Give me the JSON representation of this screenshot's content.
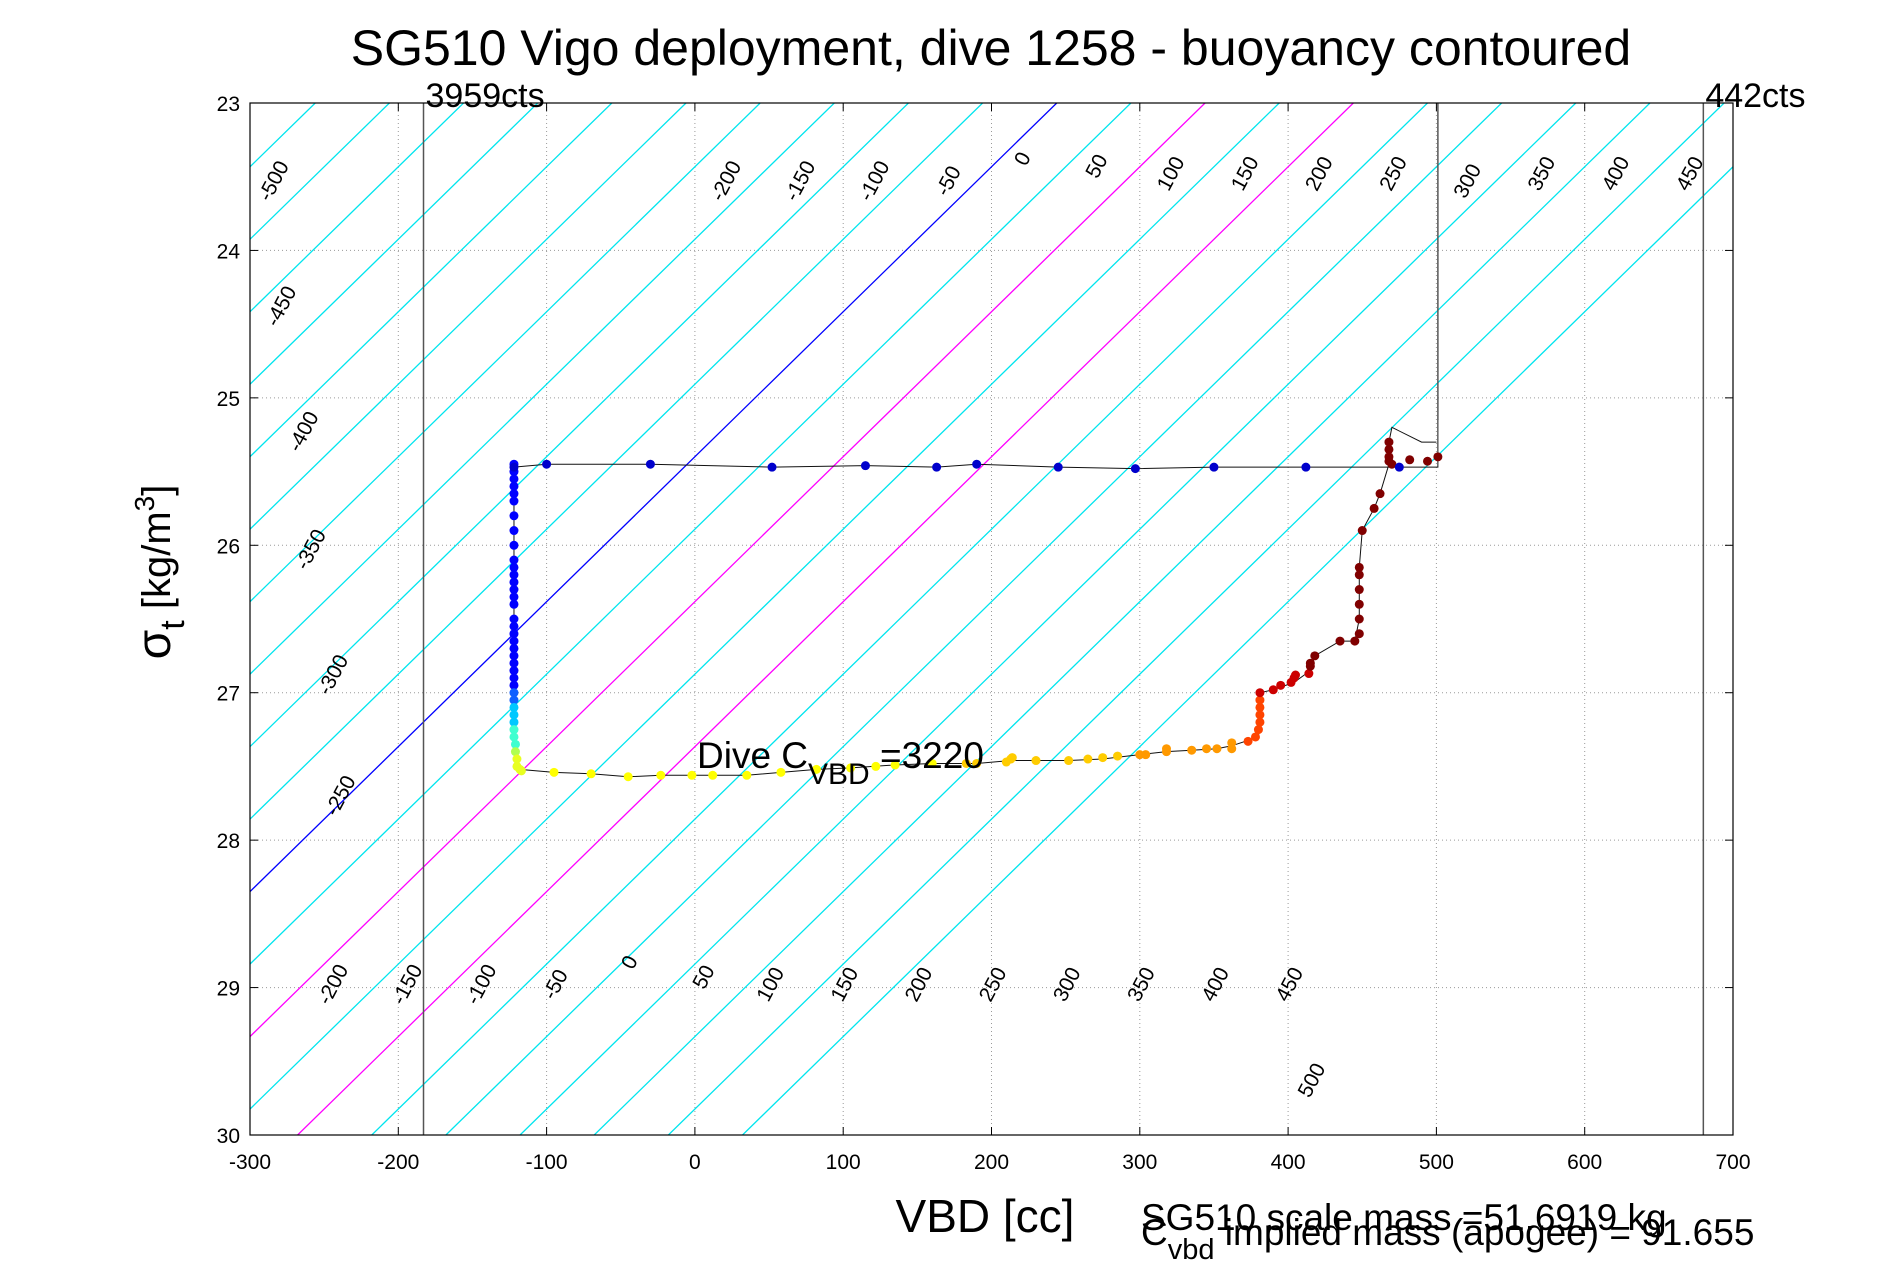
{
  "chart_data": {
    "type": "scatter",
    "title": "SG510 Vigo deployment, dive 1258 - buoyancy contoured",
    "xlabel": "VBD [cc]",
    "ylabel_main": "σ",
    "ylabel_sub": "t",
    "ylabel_units": " [kg/m",
    "ylabel_sup": "3",
    "ylabel_close": "]",
    "xlim": [
      -300,
      700
    ],
    "ylim": [
      23,
      30
    ],
    "y_reversed": true,
    "grid": true,
    "x_ticks": [
      -300,
      -200,
      -100,
      0,
      100,
      200,
      300,
      400,
      500,
      600,
      700
    ],
    "x_tick_labels": [
      "-300",
      "-200",
      "-100",
      "0",
      "100",
      "200",
      "300",
      "400",
      "500",
      "600",
      "700"
    ],
    "y_ticks": [
      23,
      24,
      25,
      26,
      27,
      28,
      29,
      30
    ],
    "y_tick_labels": [
      "23",
      "24",
      "25",
      "26",
      "27",
      "28",
      "29",
      "30"
    ],
    "vbd_limits": [
      {
        "x": -183,
        "label": "3959cts"
      },
      {
        "x": 680,
        "label": "442cts"
      }
    ],
    "apogee_line_x": 501,
    "contour_levels": [
      -500,
      -450,
      -400,
      -350,
      -300,
      -250,
      -200,
      -150,
      -100,
      -50,
      0,
      50,
      100,
      150,
      200,
      250,
      300,
      350,
      400,
      450,
      500
    ],
    "contour_slope_cc_per_sigma": 101.7,
    "contour_ref_x_at_sigma23": 244,
    "contour_colors": {
      "default": "#00e5ee",
      "zero": "#0000ff",
      "highlight": "#ff00ff"
    },
    "highlight_levels": [
      100,
      200
    ],
    "contour_labels": [
      {
        "level": -500,
        "x": -280,
        "sigma": 23.55,
        "text": "-500"
      },
      {
        "level": -450,
        "x": -275,
        "sigma": 24.4,
        "text": "-450"
      },
      {
        "level": -400,
        "x": -260,
        "sigma": 25.25,
        "text": "-400"
      },
      {
        "level": -350,
        "x": -255,
        "sigma": 26.05,
        "text": "-350"
      },
      {
        "level": -300,
        "x": -240,
        "sigma": 26.9,
        "text": "-300"
      },
      {
        "level": -250,
        "x": -235,
        "sigma": 27.72,
        "text": "-250"
      },
      {
        "level": -200,
        "x": -240,
        "sigma": 29.0,
        "text": "-200"
      },
      {
        "level": -150,
        "x": -190,
        "sigma": 29.0,
        "text": "-150"
      },
      {
        "level": -100,
        "x": -140,
        "sigma": 29.0,
        "text": "-100"
      },
      {
        "level": -50,
        "x": -90,
        "sigma": 29.0,
        "text": "-50"
      },
      {
        "level": 0,
        "x": -40,
        "sigma": 28.85,
        "text": "0"
      },
      {
        "level": 50,
        "x": 10,
        "sigma": 28.95,
        "text": "50"
      },
      {
        "level": 100,
        "x": 55,
        "sigma": 29.0,
        "text": "100"
      },
      {
        "level": 150,
        "x": 105,
        "sigma": 29.0,
        "text": "150"
      },
      {
        "level": 200,
        "x": 155,
        "sigma": 29.0,
        "text": "200"
      },
      {
        "level": 250,
        "x": 205,
        "sigma": 29.0,
        "text": "250"
      },
      {
        "level": 300,
        "x": 255,
        "sigma": 29.0,
        "text": "300"
      },
      {
        "level": 350,
        "x": 305,
        "sigma": 29.0,
        "text": "350"
      },
      {
        "level": 400,
        "x": 355,
        "sigma": 29.0,
        "text": "400"
      },
      {
        "level": 450,
        "x": 405,
        "sigma": 29.0,
        "text": "450"
      },
      {
        "level": 500,
        "x": 420,
        "sigma": 29.65,
        "text": "500"
      },
      {
        "level": -200,
        "x": 25,
        "sigma": 23.55,
        "text": "-200"
      },
      {
        "level": -150,
        "x": 75,
        "sigma": 23.55,
        "text": "-150"
      },
      {
        "level": -100,
        "x": 125,
        "sigma": 23.55,
        "text": "-100"
      },
      {
        "level": -50,
        "x": 175,
        "sigma": 23.55,
        "text": "-50"
      },
      {
        "level": 0,
        "x": 225,
        "sigma": 23.4,
        "text": "0"
      },
      {
        "level": 50,
        "x": 275,
        "sigma": 23.45,
        "text": "50"
      },
      {
        "level": 100,
        "x": 325,
        "sigma": 23.5,
        "text": "100"
      },
      {
        "level": 150,
        "x": 375,
        "sigma": 23.5,
        "text": "150"
      },
      {
        "level": 200,
        "x": 425,
        "sigma": 23.5,
        "text": "200"
      },
      {
        "level": 250,
        "x": 475,
        "sigma": 23.5,
        "text": "250"
      },
      {
        "level": 300,
        "x": 525,
        "sigma": 23.55,
        "text": "300"
      },
      {
        "level": 350,
        "x": 575,
        "sigma": 23.5,
        "text": "350"
      },
      {
        "level": 400,
        "x": 625,
        "sigma": 23.5,
        "text": "400"
      },
      {
        "level": 450,
        "x": 675,
        "sigma": 23.5,
        "text": "450"
      }
    ],
    "dive_track": [
      [
        -122,
        25.47
      ],
      [
        -100,
        25.45
      ],
      [
        -30,
        25.45
      ],
      [
        52,
        25.47
      ],
      [
        115,
        25.46
      ],
      [
        163,
        25.47
      ],
      [
        190,
        25.45
      ],
      [
        245,
        25.47
      ],
      [
        297,
        25.48
      ],
      [
        350,
        25.47
      ],
      [
        412,
        25.47
      ],
      [
        475,
        25.47
      ],
      [
        501,
        25.47
      ],
      [
        501,
        25.15
      ],
      [
        -122,
        25.47
      ],
      [
        -122,
        25.5
      ],
      [
        -122,
        25.55
      ],
      [
        -122,
        25.7
      ],
      [
        -122,
        25.85
      ],
      [
        -122,
        26.0
      ],
      [
        -122,
        26.15
      ],
      [
        -122,
        26.3
      ],
      [
        -122,
        26.45
      ],
      [
        -122,
        26.6
      ],
      [
        -122,
        26.75
      ],
      [
        -122,
        26.9
      ],
      [
        -122,
        27.05
      ],
      [
        -122,
        27.2
      ],
      [
        -121,
        27.35
      ],
      [
        -120,
        27.48
      ],
      [
        -118,
        27.52
      ],
      [
        -95,
        27.54
      ],
      [
        -70,
        27.55
      ],
      [
        -45,
        27.57
      ],
      [
        -23,
        27.56
      ],
      [
        -2,
        27.56
      ],
      [
        12,
        27.56
      ],
      [
        35,
        27.56
      ],
      [
        58,
        27.54
      ],
      [
        82,
        27.52
      ],
      [
        105,
        27.51
      ],
      [
        135,
        27.49
      ],
      [
        160,
        27.48
      ],
      [
        190,
        27.48
      ],
      [
        213,
        27.46
      ],
      [
        230,
        27.46
      ],
      [
        252,
        27.46
      ],
      [
        275,
        27.45
      ],
      [
        300,
        27.42
      ],
      [
        318,
        27.4
      ],
      [
        335,
        27.39
      ],
      [
        352,
        27.38
      ],
      [
        362,
        27.36
      ],
      [
        380,
        27.3
      ],
      [
        381,
        27.2
      ],
      [
        381,
        27.0
      ],
      [
        390,
        26.98
      ],
      [
        404,
        26.93
      ],
      [
        415,
        26.85
      ],
      [
        418,
        26.75
      ],
      [
        435,
        26.65
      ],
      [
        445,
        26.65
      ],
      [
        448,
        26.5
      ],
      [
        448,
        26.3
      ],
      [
        448,
        26.15
      ],
      [
        450,
        25.9
      ],
      [
        458,
        25.75
      ],
      [
        462,
        25.65
      ],
      [
        468,
        25.45
      ],
      [
        468,
        25.3
      ],
      [
        470,
        25.2
      ],
      [
        490,
        25.3
      ],
      [
        500,
        25.3
      ]
    ],
    "descent_points": [
      [
        -122,
        25.45
      ],
      [
        -122,
        25.5
      ],
      [
        -122,
        25.55
      ],
      [
        -122,
        25.6
      ],
      [
        -122,
        25.65
      ],
      [
        -122,
        25.7
      ],
      [
        -122,
        25.8
      ],
      [
        -122,
        25.9
      ],
      [
        -122,
        26.0
      ],
      [
        -122,
        26.1
      ],
      [
        -122,
        26.15
      ],
      [
        -122,
        26.2
      ],
      [
        -122,
        26.25
      ],
      [
        -122,
        26.3
      ],
      [
        -122,
        26.35
      ],
      [
        -122,
        26.4
      ],
      [
        -122,
        26.5
      ],
      [
        -122,
        26.55
      ],
      [
        -122,
        26.6
      ],
      [
        -122,
        26.65
      ],
      [
        -122,
        26.7
      ],
      [
        -122,
        26.75
      ],
      [
        -122,
        26.8
      ],
      [
        -122,
        26.85
      ],
      [
        -122,
        26.9
      ],
      [
        -122,
        26.95
      ],
      [
        -122,
        27.0
      ],
      [
        -122,
        27.05
      ],
      [
        -122,
        27.1
      ],
      [
        -122,
        27.15
      ],
      [
        -122,
        27.2
      ],
      [
        -122,
        27.25
      ],
      [
        -122,
        27.3
      ],
      [
        -121,
        27.35
      ],
      [
        -121,
        27.4
      ],
      [
        -120,
        27.45
      ],
      [
        -120,
        27.5
      ],
      [
        -118,
        27.52
      ],
      [
        -117,
        27.53
      ],
      [
        -95,
        27.54
      ],
      [
        -70,
        27.55
      ],
      [
        -45,
        27.57
      ],
      [
        -23,
        27.56
      ],
      [
        -2,
        27.56
      ],
      [
        12,
        27.56
      ],
      [
        35,
        27.56
      ],
      [
        58,
        27.54
      ],
      [
        82,
        27.52
      ],
      [
        105,
        27.51
      ],
      [
        122,
        27.5
      ],
      [
        135,
        27.49
      ],
      [
        160,
        27.48
      ],
      [
        183,
        27.48
      ],
      [
        190,
        27.48
      ],
      [
        210,
        27.47
      ],
      [
        213,
        27.45
      ],
      [
        214,
        27.44
      ],
      [
        230,
        27.46
      ],
      [
        252,
        27.46
      ],
      [
        265,
        27.45
      ],
      [
        275,
        27.44
      ],
      [
        285,
        27.43
      ],
      [
        300,
        27.42
      ],
      [
        304,
        27.42
      ],
      [
        318,
        27.4
      ],
      [
        318,
        27.38
      ],
      [
        335,
        27.39
      ],
      [
        345,
        27.38
      ],
      [
        352,
        27.38
      ],
      [
        362,
        27.38
      ],
      [
        362,
        27.34
      ],
      [
        373,
        27.33
      ],
      [
        378,
        27.3
      ],
      [
        380,
        27.25
      ],
      [
        381,
        27.2
      ],
      [
        381,
        27.15
      ],
      [
        381,
        27.1
      ],
      [
        381,
        27.05
      ],
      [
        381,
        27.0
      ],
      [
        390,
        26.98
      ],
      [
        395,
        26.95
      ],
      [
        402,
        26.93
      ],
      [
        404,
        26.9
      ],
      [
        405,
        26.88
      ],
      [
        414,
        26.87
      ],
      [
        415,
        26.82
      ],
      [
        415,
        26.8
      ],
      [
        418,
        26.75
      ],
      [
        435,
        26.65
      ],
      [
        445,
        26.65
      ],
      [
        448,
        26.6
      ],
      [
        448,
        26.5
      ],
      [
        448,
        26.4
      ],
      [
        448,
        26.3
      ],
      [
        448,
        26.2
      ],
      [
        448,
        26.15
      ],
      [
        450,
        25.9
      ],
      [
        458,
        25.75
      ],
      [
        462,
        25.65
      ],
      [
        468,
        25.3
      ],
      [
        468,
        25.35
      ],
      [
        468,
        25.4
      ],
      [
        468,
        25.43
      ],
      [
        470,
        25.45
      ],
      [
        482,
        25.42
      ],
      [
        494,
        25.43
      ],
      [
        501,
        25.4
      ]
    ],
    "ascent_points": [
      [
        -122,
        25.47
      ],
      [
        -100,
        25.45
      ],
      [
        -30,
        25.45
      ],
      [
        52,
        25.47
      ],
      [
        115,
        25.46
      ],
      [
        163,
        25.47
      ],
      [
        190,
        25.45
      ],
      [
        245,
        25.47
      ],
      [
        297,
        25.48
      ],
      [
        350,
        25.47
      ],
      [
        412,
        25.47
      ],
      [
        475,
        25.47
      ]
    ],
    "annotations": {
      "dive_cvbd": {
        "prefix": "Dive C",
        "sub": "VBD",
        "suffix": " =3220"
      },
      "scale_mass": "SG510 scale mass =51.6919 kg",
      "implied_mass": {
        "prefix": "C",
        "sub": "vbd",
        "suffix": " implied mass (apogee) = 91.655"
      }
    }
  }
}
